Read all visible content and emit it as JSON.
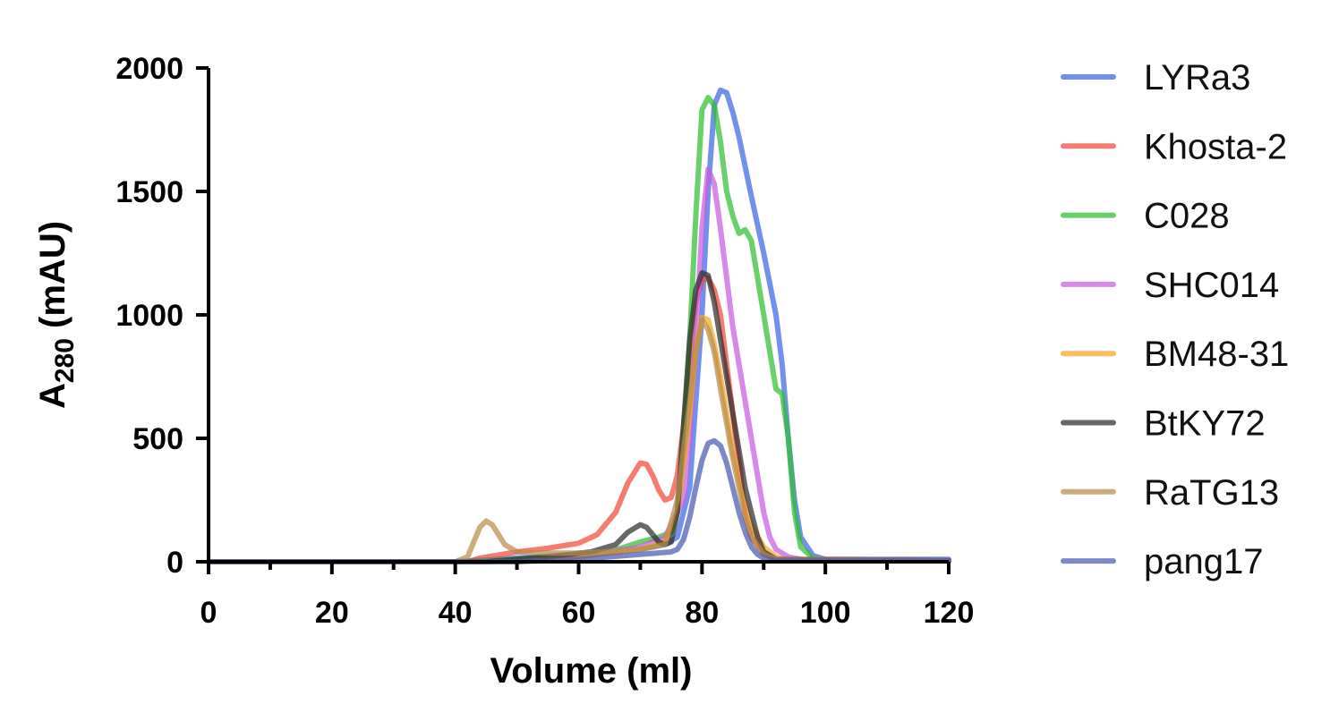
{
  "chart_data": {
    "type": "line",
    "xlabel": "Volume (ml)",
    "ylabel_main": "A",
    "ylabel_sub": "280",
    "ylabel_unit": " (mAU)",
    "xlim": [
      0,
      120
    ],
    "ylim": [
      0,
      2000
    ],
    "x_ticks": [
      0,
      20,
      40,
      60,
      80,
      100,
      120
    ],
    "x_minor_step": 10,
    "y_ticks": [
      0,
      500,
      1000,
      1500,
      2000
    ],
    "x_tick_labels": [
      "0",
      "20",
      "40",
      "60",
      "80",
      "100",
      "120"
    ],
    "y_tick_labels": [
      "0",
      "500",
      "1000",
      "1500",
      "2000"
    ],
    "grid": false,
    "legend_position": "right",
    "series": [
      {
        "name": "LYRa3",
        "color": "#3b66e6",
        "points": [
          [
            0,
            0
          ],
          [
            40,
            0
          ],
          [
            50,
            15
          ],
          [
            60,
            30
          ],
          [
            70,
            50
          ],
          [
            74,
            70
          ],
          [
            76,
            100
          ],
          [
            78,
            300
          ],
          [
            80,
            1000
          ],
          [
            81,
            1500
          ],
          [
            82,
            1850
          ],
          [
            83,
            1910
          ],
          [
            84,
            1900
          ],
          [
            85,
            1820
          ],
          [
            86,
            1720
          ],
          [
            88,
            1480
          ],
          [
            90,
            1250
          ],
          [
            92,
            1000
          ],
          [
            93,
            800
          ],
          [
            94,
            500
          ],
          [
            95,
            250
          ],
          [
            96,
            100
          ],
          [
            98,
            25
          ],
          [
            100,
            10
          ],
          [
            120,
            10
          ]
        ]
      },
      {
        "name": "Khosta-2",
        "color": "#f04a3a",
        "points": [
          [
            0,
            0
          ],
          [
            42,
            0
          ],
          [
            44,
            15
          ],
          [
            50,
            40
          ],
          [
            55,
            55
          ],
          [
            60,
            75
          ],
          [
            63,
            110
          ],
          [
            66,
            200
          ],
          [
            68,
            320
          ],
          [
            70,
            400
          ],
          [
            71,
            395
          ],
          [
            72,
            350
          ],
          [
            73,
            290
          ],
          [
            74,
            250
          ],
          [
            75,
            260
          ],
          [
            76,
            350
          ],
          [
            77,
            550
          ],
          [
            78,
            800
          ],
          [
            79,
            1050
          ],
          [
            80,
            1140
          ],
          [
            81,
            1150
          ],
          [
            82,
            1100
          ],
          [
            83,
            1000
          ],
          [
            84,
            800
          ],
          [
            85,
            600
          ],
          [
            86,
            400
          ],
          [
            87,
            200
          ],
          [
            88,
            100
          ],
          [
            90,
            30
          ],
          [
            92,
            10
          ],
          [
            120,
            5
          ]
        ]
      },
      {
        "name": "C028",
        "color": "#2fbf2f",
        "points": [
          [
            0,
            0
          ],
          [
            42,
            0
          ],
          [
            50,
            10
          ],
          [
            60,
            25
          ],
          [
            65,
            40
          ],
          [
            70,
            80
          ],
          [
            73,
            100
          ],
          [
            75,
            120
          ],
          [
            76,
            200
          ],
          [
            77,
            500
          ],
          [
            78,
            900
          ],
          [
            79,
            1400
          ],
          [
            80,
            1830
          ],
          [
            81,
            1880
          ],
          [
            82,
            1850
          ],
          [
            83,
            1700
          ],
          [
            84,
            1500
          ],
          [
            85,
            1400
          ],
          [
            86,
            1330
          ],
          [
            87,
            1345
          ],
          [
            88,
            1300
          ],
          [
            89,
            1150
          ],
          [
            90,
            1000
          ],
          [
            91,
            850
          ],
          [
            92,
            700
          ],
          [
            93,
            680
          ],
          [
            94,
            500
          ],
          [
            95,
            200
          ],
          [
            96,
            60
          ],
          [
            98,
            15
          ],
          [
            100,
            5
          ],
          [
            120,
            5
          ]
        ]
      },
      {
        "name": "SHC014",
        "color": "#c85ce0",
        "points": [
          [
            0,
            0
          ],
          [
            50,
            0
          ],
          [
            60,
            20
          ],
          [
            70,
            60
          ],
          [
            74,
            100
          ],
          [
            77,
            250
          ],
          [
            78,
            500
          ],
          [
            79,
            900
          ],
          [
            80,
            1350
          ],
          [
            81,
            1590
          ],
          [
            82,
            1530
          ],
          [
            83,
            1350
          ],
          [
            84,
            1150
          ],
          [
            85,
            950
          ],
          [
            86,
            800
          ],
          [
            87,
            650
          ],
          [
            88,
            500
          ],
          [
            89,
            350
          ],
          [
            90,
            200
          ],
          [
            91,
            100
          ],
          [
            92,
            50
          ],
          [
            94,
            20
          ],
          [
            96,
            10
          ],
          [
            120,
            5
          ]
        ]
      },
      {
        "name": "BM48-31",
        "color": "#f5a623",
        "points": [
          [
            0,
            0
          ],
          [
            50,
            0
          ],
          [
            60,
            20
          ],
          [
            70,
            50
          ],
          [
            74,
            80
          ],
          [
            76,
            200
          ],
          [
            78,
            600
          ],
          [
            79,
            850
          ],
          [
            80,
            990
          ],
          [
            81,
            980
          ],
          [
            82,
            880
          ],
          [
            83,
            750
          ],
          [
            84,
            600
          ],
          [
            85,
            450
          ],
          [
            86,
            330
          ],
          [
            87,
            230
          ],
          [
            88,
            150
          ],
          [
            90,
            60
          ],
          [
            92,
            20
          ],
          [
            94,
            5
          ],
          [
            120,
            5
          ]
        ]
      },
      {
        "name": "BtKY72",
        "color": "#2e2e2e",
        "points": [
          [
            0,
            0
          ],
          [
            45,
            0
          ],
          [
            55,
            20
          ],
          [
            62,
            40
          ],
          [
            66,
            70
          ],
          [
            68,
            120
          ],
          [
            70,
            150
          ],
          [
            71,
            140
          ],
          [
            72,
            110
          ],
          [
            73,
            80
          ],
          [
            74,
            70
          ],
          [
            75,
            80
          ],
          [
            76,
            200
          ],
          [
            77,
            550
          ],
          [
            78,
            900
          ],
          [
            79,
            1100
          ],
          [
            80,
            1170
          ],
          [
            81,
            1160
          ],
          [
            82,
            1050
          ],
          [
            83,
            900
          ],
          [
            84,
            750
          ],
          [
            85,
            600
          ],
          [
            86,
            450
          ],
          [
            87,
            300
          ],
          [
            88,
            200
          ],
          [
            89,
            100
          ],
          [
            90,
            40
          ],
          [
            92,
            10
          ],
          [
            120,
            5
          ]
        ]
      },
      {
        "name": "RaTG13",
        "color": "#b88e4c",
        "points": [
          [
            0,
            0
          ],
          [
            40,
            0
          ],
          [
            42,
            20
          ],
          [
            43,
            80
          ],
          [
            44,
            140
          ],
          [
            45,
            165
          ],
          [
            46,
            150
          ],
          [
            47,
            110
          ],
          [
            48,
            70
          ],
          [
            50,
            40
          ],
          [
            55,
            35
          ],
          [
            60,
            35
          ],
          [
            65,
            40
          ],
          [
            70,
            50
          ],
          [
            74,
            70
          ],
          [
            76,
            250
          ],
          [
            78,
            650
          ],
          [
            79,
            850
          ],
          [
            80,
            980
          ],
          [
            81,
            940
          ],
          [
            82,
            850
          ],
          [
            83,
            700
          ],
          [
            84,
            560
          ],
          [
            85,
            420
          ],
          [
            86,
            300
          ],
          [
            87,
            180
          ],
          [
            88,
            100
          ],
          [
            90,
            30
          ],
          [
            92,
            10
          ],
          [
            120,
            5
          ]
        ]
      },
      {
        "name": "pang17",
        "color": "#4a5cb0",
        "points": [
          [
            0,
            0
          ],
          [
            50,
            0
          ],
          [
            60,
            10
          ],
          [
            70,
            30
          ],
          [
            75,
            40
          ],
          [
            76,
            50
          ],
          [
            77,
            90
          ],
          [
            78,
            180
          ],
          [
            79,
            300
          ],
          [
            80,
            410
          ],
          [
            81,
            480
          ],
          [
            82,
            490
          ],
          [
            83,
            470
          ],
          [
            84,
            400
          ],
          [
            85,
            300
          ],
          [
            86,
            200
          ],
          [
            87,
            120
          ],
          [
            88,
            60
          ],
          [
            89,
            30
          ],
          [
            90,
            15
          ],
          [
            92,
            5
          ],
          [
            120,
            5
          ]
        ]
      }
    ]
  }
}
